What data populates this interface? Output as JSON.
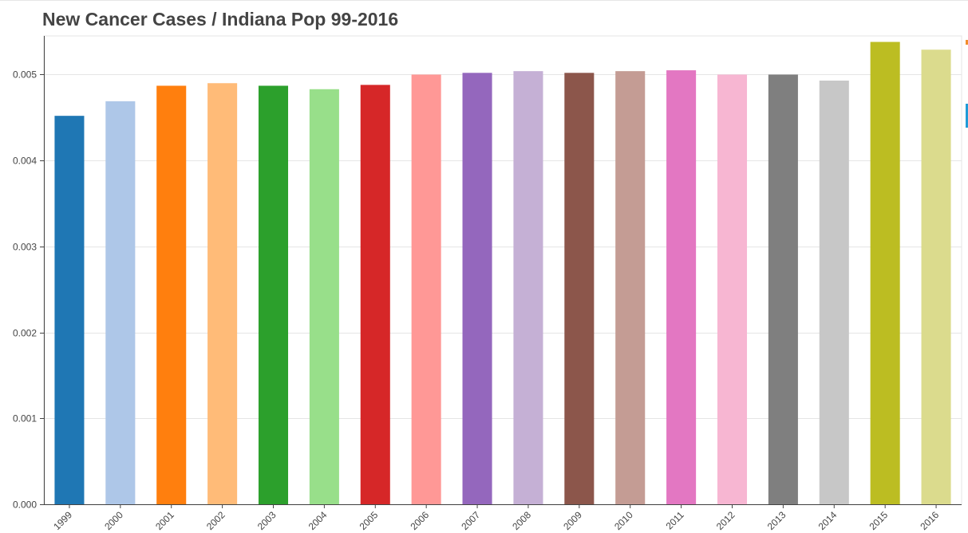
{
  "chart_data": {
    "type": "bar",
    "title": "New Cancer Cases / Indiana Pop 99-2016",
    "xlabel": "",
    "ylabel": "",
    "categories": [
      "1999",
      "2000",
      "2001",
      "2002",
      "2003",
      "2004",
      "2005",
      "2006",
      "2007",
      "2008",
      "2009",
      "2010",
      "2011",
      "2012",
      "2013",
      "2014",
      "2015",
      "2016"
    ],
    "values": [
      0.00452,
      0.00469,
      0.00487,
      0.0049,
      0.00487,
      0.00483,
      0.00488,
      0.005,
      0.00502,
      0.00504,
      0.00502,
      0.00504,
      0.00505,
      0.005,
      0.005,
      0.00493,
      0.00538,
      0.00529
    ],
    "colors": [
      "#1f77b4",
      "#aec7e8",
      "#ff7f0e",
      "#ffbb78",
      "#2ca02c",
      "#98df8a",
      "#d62728",
      "#ff9896",
      "#9467bd",
      "#c5b0d5",
      "#8c564b",
      "#c49c94",
      "#e377c2",
      "#f7b6d2",
      "#7f7f7f",
      "#c7c7c7",
      "#bcbd22",
      "#dbdb8d"
    ],
    "yticks": [
      "0.000",
      "0.001",
      "0.002",
      "0.003",
      "0.004",
      "0.005"
    ],
    "ylim": [
      0,
      0.00545
    ],
    "grid": true,
    "legend": "none"
  }
}
